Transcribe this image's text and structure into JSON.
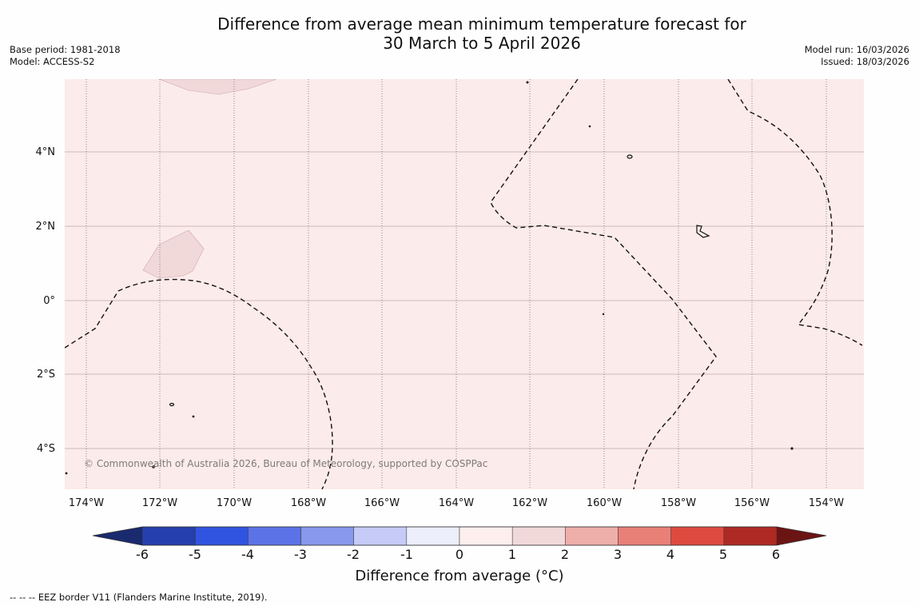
{
  "title": {
    "line1": "Difference from average mean minimum temperature forecast for",
    "line2": "30 March to 5 April 2026"
  },
  "meta": {
    "base_period": "Base period: 1981-2018",
    "model": "Model: ACCESS-S2",
    "model_run": "Model run: 16/03/2026",
    "issued": "Issued: 18/03/2026"
  },
  "map": {
    "background_color": "#fbebea",
    "anomaly_patch_color": "#f1d8d9",
    "lat_labels": [
      "4°N",
      "2°N",
      "0°",
      "2°S",
      "4°S"
    ],
    "lon_labels": [
      "174°W",
      "172°W",
      "170°W",
      "168°W",
      "166°W",
      "164°W",
      "162°W",
      "160°W",
      "158°W",
      "156°W",
      "154°W"
    ],
    "copyright": "© Commonwealth of Australia 2026, Bureau of Meteorology, supported by COSPPac"
  },
  "colorbar": {
    "colors": [
      "#1a2a6e",
      "#263fae",
      "#3054e0",
      "#5b73e6",
      "#8898ec",
      "#c5cbf6",
      "#eceefc",
      "#fcefed",
      "#f1d8d9",
      "#eeaeaa",
      "#e98078",
      "#de4a40",
      "#ad2a24",
      "#6b1414"
    ],
    "tick_labels": [
      "-6",
      "-5",
      "-4",
      "-3",
      "-2",
      "-1",
      "0",
      "1",
      "2",
      "3",
      "4",
      "5",
      "6"
    ],
    "title": "Difference from average (°C)"
  },
  "footnote": "--  --  -- EEZ border V11 (Flanders Marine Institute, 2019)."
}
